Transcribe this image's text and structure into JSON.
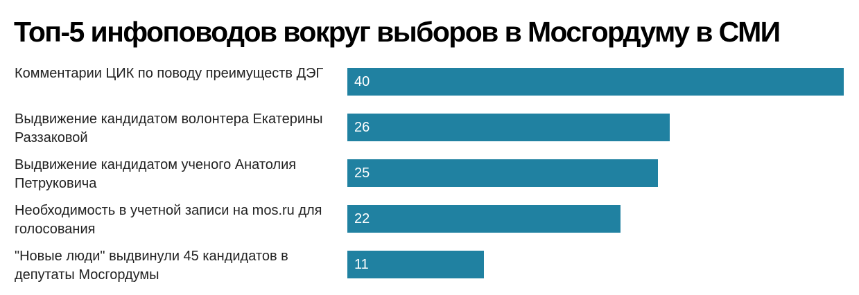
{
  "title": "Топ-5 инфоповодов вокруг выборов в Мосгордуму в СМИ",
  "colors": {
    "bar": "#2081a1",
    "label": "#222222",
    "title": "#000000",
    "value_text": "#ffffff"
  },
  "chart_data": {
    "type": "bar",
    "orientation": "horizontal",
    "title": "Топ-5 инфоповодов вокруг выборов в Мосгордуму в СМИ",
    "categories": [
      "Комментарии ЦИК по поводу преимуществ ДЭГ",
      "Выдвижение кандидатом волонтера Екатерины Раззаковой",
      "Выдвижение кандидатом ученого Анатолия Петруковича",
      "Необходимость в учетной записи на mos.ru для голосования",
      "\"Новые люди\" выдвинули 45 кандидатов в депутаты Мосгордумы"
    ],
    "values": [
      40,
      26,
      25,
      22,
      11
    ],
    "xlim": [
      0,
      40
    ],
    "grid": false,
    "legend": "none",
    "data_labels": "inside-left"
  }
}
